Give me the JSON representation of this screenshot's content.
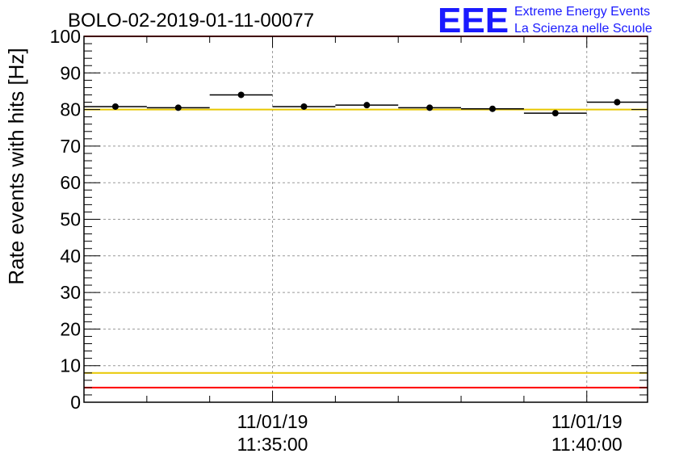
{
  "chart_data": {
    "type": "scatter",
    "title": "BOLO-02-2019-01-11-00077",
    "ylabel": "Rate events with hits [Hz]",
    "xlabel": "",
    "ylim": [
      0,
      100
    ],
    "yticks": [
      0,
      10,
      20,
      30,
      40,
      50,
      60,
      70,
      80,
      90,
      100
    ],
    "xlim": [
      "11:32:00",
      "11:40:58"
    ],
    "xticks": [
      {
        "date": "11/01/19",
        "time": "11:35:00"
      },
      {
        "date": "11/01/19",
        "time": "11:40:00"
      }
    ],
    "grid": true,
    "series": [
      {
        "points": [
          {
            "x_start": "11:32:00",
            "x_end": "11:33:00",
            "y": 80.8,
            "err": 0.8
          },
          {
            "x_start": "11:33:00",
            "x_end": "11:34:00",
            "y": 80.5,
            "err": 0.8
          },
          {
            "x_start": "11:34:00",
            "x_end": "11:35:00",
            "y": 84.0,
            "err": 0.8
          },
          {
            "x_start": "11:35:00",
            "x_end": "11:36:00",
            "y": 80.8,
            "err": 0.8
          },
          {
            "x_start": "11:36:00",
            "x_end": "11:37:00",
            "y": 81.2,
            "err": 0.8
          },
          {
            "x_start": "11:37:00",
            "x_end": "11:38:00",
            "y": 80.5,
            "err": 0.8
          },
          {
            "x_start": "11:38:00",
            "x_end": "11:39:00",
            "y": 80.2,
            "err": 0.8
          },
          {
            "x_start": "11:39:00",
            "x_end": "11:40:00",
            "y": 79.0,
            "err": 0.8
          },
          {
            "x_start": "11:40:00",
            "x_end": "11:40:58",
            "y": 82.0,
            "err": 0.8
          }
        ]
      }
    ],
    "reference_lines": [
      {
        "y": 100,
        "color": "#ff0000"
      },
      {
        "y": 80,
        "color": "#e8c800"
      },
      {
        "y": 8,
        "color": "#e8c800"
      },
      {
        "y": 4,
        "color": "#ff0000"
      }
    ]
  },
  "logo": {
    "big": "EEE",
    "line1": "Extreme Energy Events",
    "line2": "La Scienza nelle Scuole",
    "color": "#1a1aff"
  }
}
